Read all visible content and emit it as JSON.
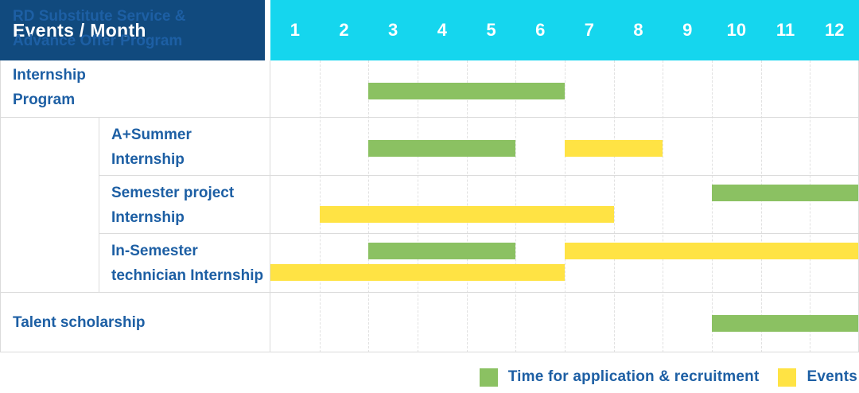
{
  "header": {
    "title": "Events / Month",
    "months": [
      "1",
      "2",
      "3",
      "4",
      "5",
      "6",
      "7",
      "8",
      "9",
      "10",
      "11",
      "12"
    ]
  },
  "colors": {
    "header_bg": "#114A7E",
    "months_bg": "#15D6EE",
    "label_text": "#1D5FA4",
    "application_green": "#8BC162",
    "events_yellow": "#FFE344",
    "grid_dashed": "#E1E1E1",
    "border_solid": "#DBDBDB"
  },
  "rows": [
    {
      "label_line1": "RD Substitute Service &",
      "label_line2": "Advance Offer Program"
    },
    {
      "label_line1": "A+Summer",
      "label_line2": "Internship"
    },
    {
      "label_line1": "Semester project",
      "label_line2": "Internship"
    },
    {
      "label_line1": "In-Semester",
      "label_line2": "technician Internship"
    },
    {
      "label_line1": "Talent scholarship",
      "label_line2": ""
    }
  ],
  "group": {
    "line1": "Internship",
    "line2": "Program"
  },
  "legend": {
    "items": [
      {
        "series": "application",
        "label": "Time for application & recruitment"
      },
      {
        "series": "events",
        "label": "Events"
      }
    ]
  },
  "chart_data": {
    "type": "gantt",
    "title": "Events / Month",
    "months": [
      1,
      2,
      3,
      4,
      5,
      6,
      7,
      8,
      9,
      10,
      11,
      12
    ],
    "series": {
      "application": {
        "label": "Time for application & recruitment",
        "color": "#8BC162"
      },
      "events": {
        "label": "Events",
        "color": "#FFE344"
      }
    },
    "rows": [
      {
        "name": "RD Substitute Service & Advance Offer Program",
        "bars": [
          {
            "series": "application",
            "start_month": 3,
            "end_month": 6,
            "line": 0
          }
        ]
      },
      {
        "name": "A+Summer Internship",
        "group": "Internship Program",
        "bars": [
          {
            "series": "application",
            "start_month": 3,
            "end_month": 5,
            "line": 0
          },
          {
            "series": "events",
            "start_month": 7,
            "end_month": 8,
            "line": 0
          }
        ]
      },
      {
        "name": "Semester project Internship",
        "group": "Internship Program",
        "bars": [
          {
            "series": "application",
            "start_month": 10,
            "end_month": 12,
            "line": 0
          },
          {
            "series": "events",
            "start_month": 2,
            "end_month": 7,
            "line": 1
          }
        ]
      },
      {
        "name": "In-Semester technician Internship",
        "group": "Internship Program",
        "bars": [
          {
            "series": "application",
            "start_month": 3,
            "end_month": 5,
            "line": 0
          },
          {
            "series": "events",
            "start_month": 7,
            "end_month": 12,
            "line": 0
          },
          {
            "series": "events",
            "start_month": 1,
            "end_month": 6,
            "line": 1
          }
        ]
      },
      {
        "name": "Talent scholarship",
        "bars": [
          {
            "series": "application",
            "start_month": 10,
            "end_month": 12,
            "line": 0
          }
        ]
      }
    ]
  }
}
